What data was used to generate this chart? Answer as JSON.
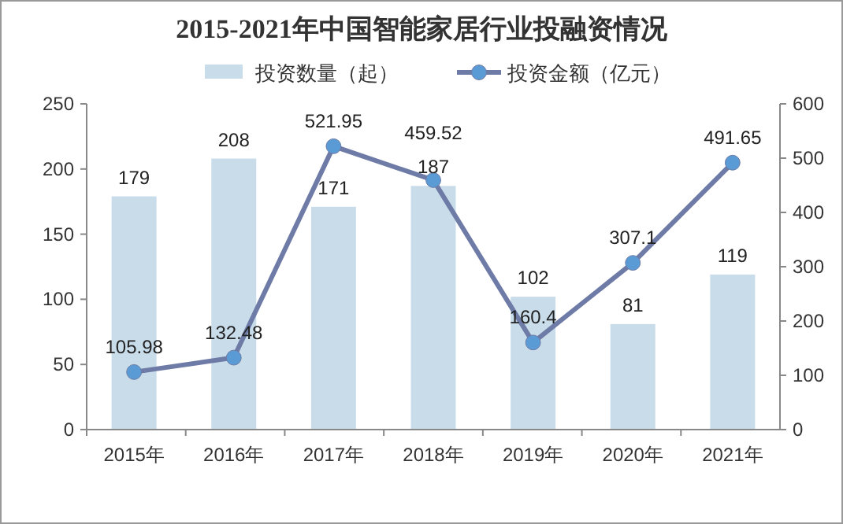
{
  "chart_data": {
    "type": "bar",
    "title": "2015-2021年中国智能家居行业投融资情况",
    "categories": [
      "2015年",
      "2016年",
      "2017年",
      "2018年",
      "2019年",
      "2020年",
      "2021年"
    ],
    "series": [
      {
        "name": "投资数量（起）",
        "color": "#c9dcea",
        "values": [
          179,
          208,
          171,
          187,
          102,
          81,
          119
        ]
      },
      {
        "name": "投资金额（亿元）",
        "type": "line",
        "axis": "y2",
        "color": "#6d7ba6",
        "marker": "circle",
        "values": [
          105.98,
          132.48,
          521.95,
          459.52,
          160.4,
          307.1,
          491.65
        ]
      }
    ],
    "ylim": [
      0,
      250
    ],
    "yticks": [
      0,
      50,
      100,
      150,
      200,
      250
    ],
    "y2lim": [
      0,
      600
    ],
    "y2ticks": [
      0,
      100,
      200,
      300,
      400,
      500,
      600
    ],
    "data_labels": true,
    "legend": "top",
    "grid": false
  }
}
